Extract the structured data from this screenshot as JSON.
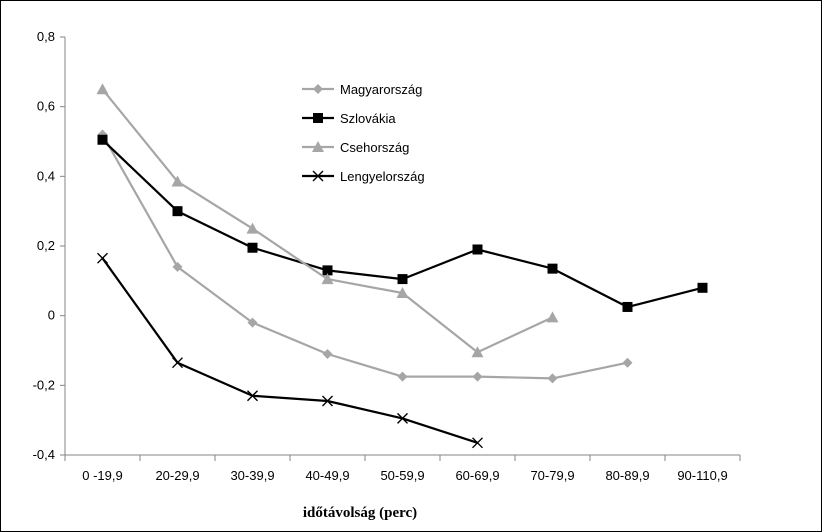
{
  "chart_data": {
    "type": "line",
    "title": "",
    "xlabel": "időtávolság (perc)",
    "ylabel": "",
    "categories": [
      "0 -19,9",
      "20-29,9",
      "30-39,9",
      "40-49,9",
      "50-59,9",
      "60-69,9",
      "70-79,9",
      "80-89,9",
      "90-110,9"
    ],
    "ylim": [
      -0.4,
      0.8
    ],
    "yticks": [
      -0.4,
      -0.2,
      0,
      0.2,
      0.4,
      0.6,
      0.8
    ],
    "ytick_labels": [
      "-0,4",
      "-0,2",
      "0",
      "0,2",
      "0,4",
      "0,6",
      "0,8"
    ],
    "grid": false,
    "legend_position": "top-center",
    "series": [
      {
        "name": "Magyarország",
        "color": "#a6a6a6",
        "marker": "diamond",
        "values": [
          0.52,
          0.14,
          -0.02,
          -0.11,
          -0.175,
          -0.175,
          -0.18,
          -0.135,
          null
        ]
      },
      {
        "name": "Szlovákia",
        "color": "#000000",
        "marker": "square",
        "values": [
          0.505,
          0.3,
          0.195,
          0.13,
          0.105,
          0.19,
          0.135,
          0.025,
          0.08
        ]
      },
      {
        "name": "Csehország",
        "color": "#a6a6a6",
        "marker": "triangle",
        "values": [
          0.65,
          0.385,
          0.25,
          0.105,
          0.065,
          -0.105,
          -0.005,
          null,
          null
        ]
      },
      {
        "name": "Lengyelország",
        "color": "#000000",
        "marker": "x",
        "values": [
          0.165,
          -0.135,
          -0.23,
          -0.245,
          -0.295,
          -0.365,
          null,
          null,
          null
        ]
      }
    ]
  }
}
